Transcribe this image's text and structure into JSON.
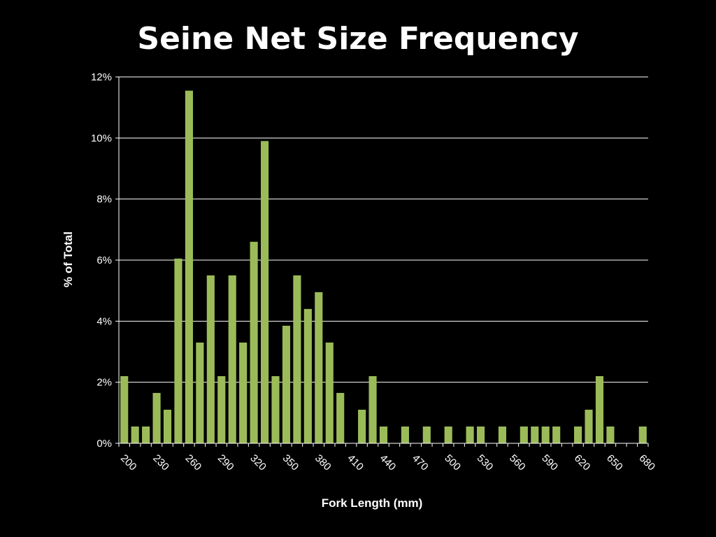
{
  "chart_data": {
    "type": "bar",
    "title": "Seine Net Size Frequency",
    "xlabel": "Fork Length (mm)",
    "ylabel": "% of Total",
    "x": [
      200,
      210,
      220,
      230,
      240,
      250,
      260,
      270,
      280,
      290,
      300,
      310,
      320,
      330,
      340,
      350,
      360,
      370,
      380,
      390,
      400,
      410,
      420,
      430,
      440,
      450,
      460,
      470,
      480,
      490,
      500,
      510,
      520,
      530,
      540,
      550,
      560,
      570,
      580,
      590,
      600,
      610,
      620,
      630,
      640,
      650,
      660,
      670,
      680
    ],
    "values": [
      2.2,
      0.55,
      0.55,
      1.65,
      1.1,
      6.05,
      11.55,
      3.3,
      5.5,
      2.2,
      5.5,
      3.3,
      6.6,
      9.9,
      2.2,
      3.85,
      5.5,
      4.4,
      4.95,
      3.3,
      1.65,
      0,
      1.1,
      2.2,
      0.55,
      0,
      0.55,
      0,
      0.55,
      0,
      0.55,
      0,
      0.55,
      0.55,
      0,
      0.55,
      0,
      0.55,
      0.55,
      0.55,
      0.55,
      0,
      0.55,
      1.1,
      2.2,
      0.55,
      0,
      0,
      0.55
    ],
    "x_tick_labels": [
      "200",
      "230",
      "260",
      "290",
      "320",
      "350",
      "380",
      "410",
      "440",
      "470",
      "500",
      "530",
      "560",
      "590",
      "620",
      "650",
      "680"
    ],
    "y_tick_labels": [
      "0%",
      "2%",
      "4%",
      "6%",
      "8%",
      "10%",
      "12%"
    ],
    "ylim": [
      0,
      12
    ],
    "grid": true,
    "colors": {
      "bar": "#9BBB59",
      "background": "#000000",
      "text": "#FFFFFF",
      "grid": "#FFFFFF"
    }
  }
}
